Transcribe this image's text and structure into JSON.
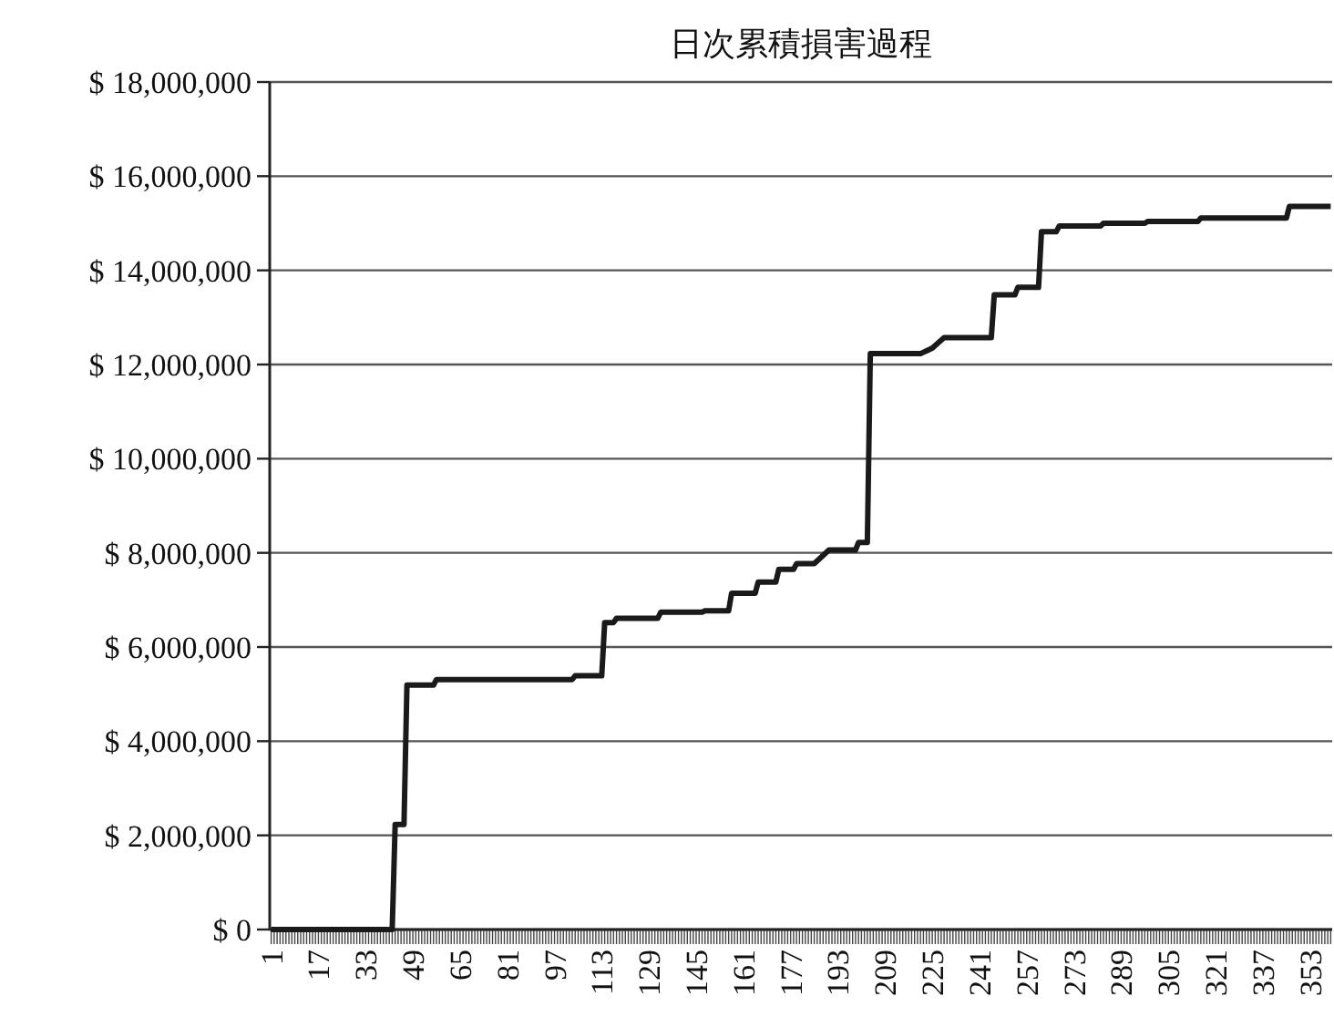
{
  "chart_data": {
    "type": "line",
    "title": "日次累積損害過程",
    "x": [
      1,
      42,
      43,
      46,
      47,
      56,
      57,
      103,
      104,
      113,
      114,
      117,
      118,
      132,
      133,
      147,
      148,
      156,
      157,
      165,
      166,
      172,
      173,
      178,
      179,
      185,
      190,
      199,
      200,
      203,
      204,
      221,
      225,
      229,
      245,
      246,
      253,
      254,
      261,
      262,
      267,
      268,
      282,
      283,
      297,
      298,
      315,
      316,
      345,
      346,
      360
    ],
    "series": [
      {
        "color": "#1a1a1a",
        "values": [
          0,
          0,
          2230000,
          2230000,
          5190000,
          5190000,
          5310000,
          5310000,
          5390000,
          5390000,
          6520000,
          6520000,
          6610000,
          6610000,
          6740000,
          6740000,
          6770000,
          6770000,
          7140000,
          7140000,
          7380000,
          7380000,
          7650000,
          7650000,
          7770000,
          7770000,
          8060000,
          8060000,
          8220000,
          8220000,
          12230000,
          12230000,
          12350000,
          12570000,
          12570000,
          13480000,
          13480000,
          13640000,
          13640000,
          14820000,
          14820000,
          14940000,
          14940000,
          15000000,
          15000000,
          15040000,
          15040000,
          15110000,
          15110000,
          15360000,
          15360000
        ]
      }
    ],
    "xlim": [
      0.5,
      360.5
    ],
    "xticks": [
      1,
      17,
      33,
      49,
      65,
      81,
      97,
      113,
      129,
      145,
      161,
      177,
      193,
      209,
      225,
      241,
      257,
      273,
      289,
      305,
      321,
      337,
      353
    ],
    "ylim": [
      0,
      18000000
    ],
    "yticks": [
      {
        "value": 0,
        "label": "$ 0"
      },
      {
        "value": 2000000,
        "label": "$ 2,000,000"
      },
      {
        "value": 4000000,
        "label": "$ 4,000,000"
      },
      {
        "value": 6000000,
        "label": "$ 6,000,000"
      },
      {
        "value": 8000000,
        "label": "$ 8,000,000"
      },
      {
        "value": 10000000,
        "label": "$ 10,000,000"
      },
      {
        "value": 12000000,
        "label": "$ 12,000,000"
      },
      {
        "value": 14000000,
        "label": "$ 14,000,000"
      },
      {
        "value": 16000000,
        "label": "$ 16,000,000"
      },
      {
        "value": 18000000,
        "label": "$ 18,000,000"
      }
    ],
    "grid": "y",
    "marker": "none",
    "line_style": "solid"
  }
}
